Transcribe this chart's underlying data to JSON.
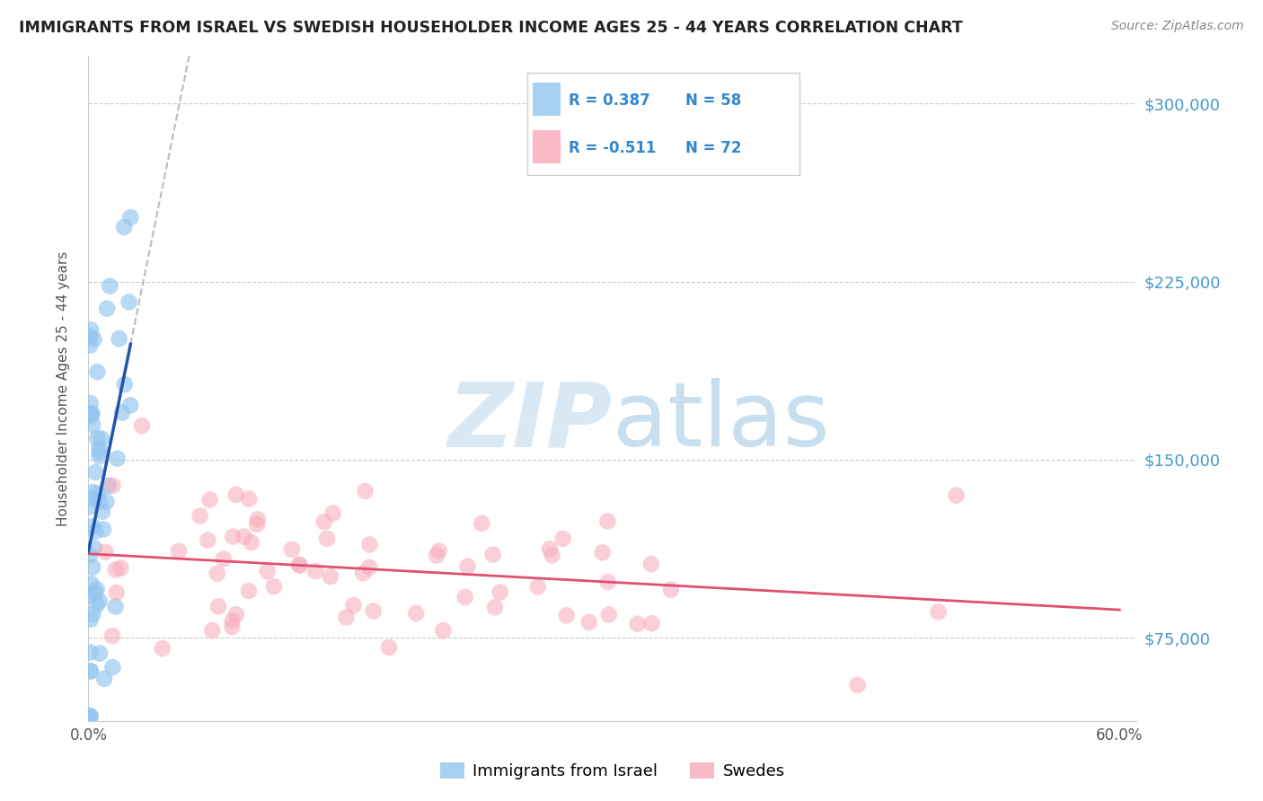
{
  "title": "IMMIGRANTS FROM ISRAEL VS SWEDISH HOUSEHOLDER INCOME AGES 25 - 44 YEARS CORRELATION CHART",
  "source": "Source: ZipAtlas.com",
  "ylabel": "Householder Income Ages 25 - 44 years",
  "xlim": [
    0.0,
    0.61
  ],
  "ylim": [
    40000,
    320000
  ],
  "yticks": [
    75000,
    150000,
    225000,
    300000
  ],
  "ytick_labels": [
    "$75,000",
    "$150,000",
    "$225,000",
    "$300,000"
  ],
  "xticks": [
    0.0,
    0.1,
    0.2,
    0.3,
    0.4,
    0.5,
    0.6
  ],
  "xtick_labels": [
    "0.0%",
    "",
    "",
    "",
    "",
    "",
    "60.0%"
  ],
  "legend_entries": [
    {
      "label": "Immigrants from Israel",
      "color": "#92C5F0",
      "R": "0.387",
      "N": "58"
    },
    {
      "label": "Swedes",
      "color": "#F9A8B8",
      "R": "-0.511",
      "N": "72"
    }
  ],
  "background_color": "#ffffff",
  "grid_color": "#cccccc",
  "israel_color": "#92C5F0",
  "swedes_color": "#F9A8B8",
  "trend_israel_color": "#2255AA",
  "trend_swedes_color": "#E05070",
  "ref_line_color": "#bbbbbb",
  "watermark_color": "#D8E8F5",
  "israel_seed": 42,
  "swedes_seed": 7
}
